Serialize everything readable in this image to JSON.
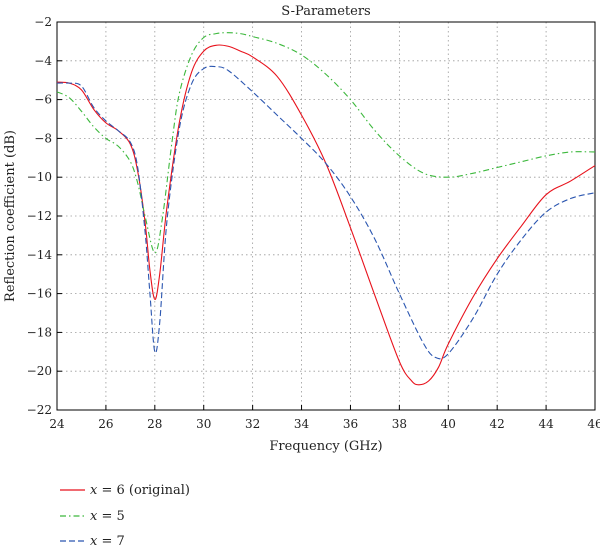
{
  "chart_data": {
    "type": "line",
    "title": "S-Parameters",
    "xlabel": "Frequency (GHz)",
    "ylabel": "Reflection coefficient (dB)",
    "xlim": [
      24,
      46
    ],
    "ylim": [
      -22,
      -2
    ],
    "xticks": [
      24,
      26,
      28,
      30,
      32,
      34,
      36,
      38,
      40,
      42,
      44,
      46
    ],
    "yticks": [
      -22,
      -20,
      -18,
      -16,
      -14,
      -12,
      -10,
      -8,
      -6,
      -4,
      -2
    ],
    "grid": true,
    "legend_position": "below",
    "series": [
      {
        "name": "x = 6 (original)",
        "legend_var": "x",
        "legend_rest": " = 6 (original)",
        "color": "#e8121c",
        "dash": "solid",
        "x": [
          24,
          24.5,
          25,
          25.5,
          26,
          26.5,
          27,
          27.3,
          27.6,
          27.8,
          28,
          28.2,
          28.5,
          29,
          29.5,
          30,
          30.5,
          31,
          31.5,
          32,
          33,
          34,
          35,
          36,
          37,
          38,
          38.5,
          38.8,
          39.2,
          39.6,
          40,
          41,
          42,
          43,
          44,
          45,
          46
        ],
        "y": [
          -5.1,
          -5.15,
          -5.5,
          -6.5,
          -7.2,
          -7.6,
          -8.3,
          -9.7,
          -12.3,
          -14.8,
          -16.3,
          -15.0,
          -11.5,
          -7.2,
          -4.6,
          -3.5,
          -3.2,
          -3.25,
          -3.5,
          -3.8,
          -4.8,
          -6.8,
          -9.3,
          -12.6,
          -16.1,
          -19.5,
          -20.5,
          -20.7,
          -20.5,
          -19.8,
          -18.6,
          -16.2,
          -14.2,
          -12.5,
          -10.9,
          -10.2,
          -9.4
        ]
      },
      {
        "name": "x = 5",
        "legend_var": "x",
        "legend_rest": " = 5",
        "color": "#3cb83c",
        "dash": "dashdot",
        "x": [
          24,
          24.5,
          25,
          25.5,
          26,
          26.5,
          27,
          27.3,
          27.6,
          28,
          28.3,
          28.7,
          29,
          29.5,
          30,
          30.5,
          31,
          31.5,
          32,
          33,
          34,
          35,
          36,
          37,
          38,
          39,
          40,
          41,
          42,
          43,
          44,
          45,
          46
        ],
        "y": [
          -5.6,
          -5.9,
          -6.6,
          -7.4,
          -8.0,
          -8.4,
          -9.2,
          -10.3,
          -12.0,
          -13.9,
          -12.2,
          -8.2,
          -5.7,
          -3.7,
          -2.8,
          -2.6,
          -2.55,
          -2.6,
          -2.75,
          -3.1,
          -3.7,
          -4.7,
          -6.0,
          -7.6,
          -8.9,
          -9.8,
          -10.0,
          -9.8,
          -9.5,
          -9.2,
          -8.9,
          -8.7,
          -8.7
        ]
      },
      {
        "name": "x = 7",
        "legend_var": "x",
        "legend_rest": " = 7",
        "color": "#2b56b0",
        "dash": "dashed",
        "x": [
          24,
          24.5,
          25,
          25.5,
          26,
          26.5,
          27,
          27.3,
          27.6,
          27.8,
          28,
          28.2,
          28.5,
          29,
          29.5,
          30,
          30.5,
          31,
          32,
          33,
          34,
          35,
          36,
          37,
          38,
          39,
          39.5,
          40,
          41,
          42,
          43,
          44,
          45,
          46
        ],
        "y": [
          -5.15,
          -5.15,
          -5.3,
          -6.4,
          -7.1,
          -7.6,
          -8.2,
          -9.5,
          -12.8,
          -16.0,
          -19.0,
          -17.5,
          -12.2,
          -7.5,
          -5.2,
          -4.4,
          -4.3,
          -4.5,
          -5.6,
          -6.8,
          -8.0,
          -9.3,
          -11.0,
          -13.2,
          -16.0,
          -18.6,
          -19.3,
          -19.1,
          -17.3,
          -15.0,
          -13.2,
          -11.8,
          -11.1,
          -10.8
        ]
      }
    ]
  }
}
